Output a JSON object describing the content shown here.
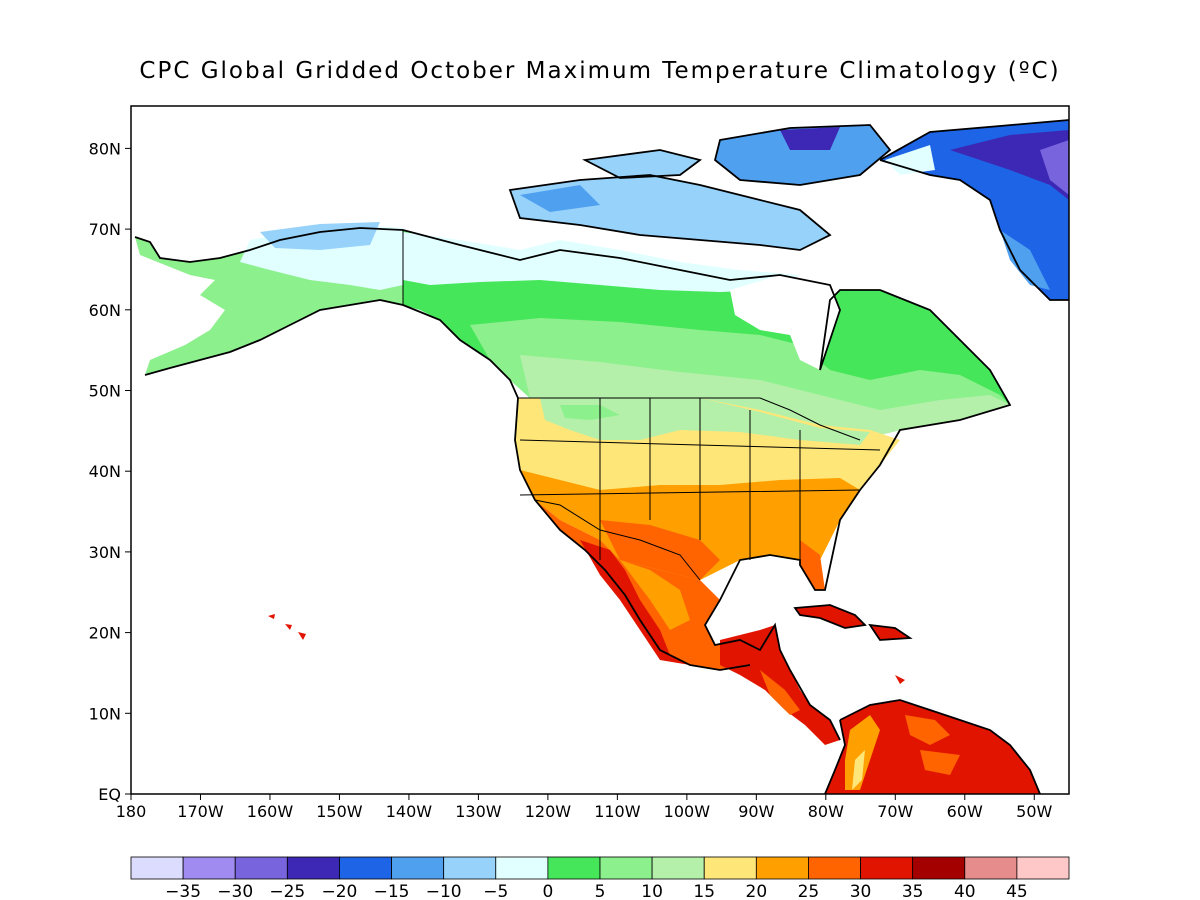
{
  "title": "CPC Global Gridded October Maximum Temperature Climatology (ºC)",
  "map": {
    "lon_range": [
      180,
      45
    ],
    "lat_range": [
      0,
      85
    ],
    "lon_ticks": [
      "180",
      "170W",
      "160W",
      "150W",
      "140W",
      "130W",
      "120W",
      "110W",
      "100W",
      "90W",
      "80W",
      "70W",
      "60W",
      "50W"
    ],
    "lat_ticks": [
      "EQ",
      "10N",
      "20N",
      "30N",
      "40N",
      "50N",
      "60N",
      "70N",
      "80N"
    ]
  },
  "colorbar": {
    "colors": [
      "#dcdcff",
      "#a08cf0",
      "#7864dc",
      "#3c28b4",
      "#1e64e6",
      "#50a0f0",
      "#96d2fa",
      "#e1ffff",
      "#46e65a",
      "#8cf08c",
      "#b4f0aa",
      "#ffe678",
      "#ffa000",
      "#ff6400",
      "#e11400",
      "#a50000",
      "#e68c8c",
      "#ffc8c8"
    ],
    "labels": [
      "−35",
      "−30",
      "−25",
      "−20",
      "−15",
      "−10",
      "−5",
      "0",
      "5",
      "10",
      "15",
      "20",
      "25",
      "30",
      "35",
      "40",
      "45"
    ]
  }
}
